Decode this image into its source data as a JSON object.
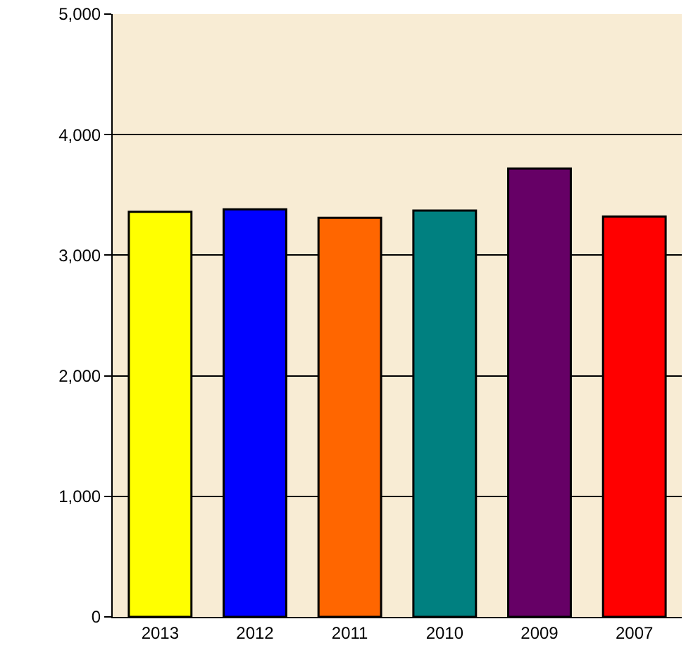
{
  "chart_data": {
    "type": "bar",
    "categories": [
      "2013",
      "2012",
      "2011",
      "2010",
      "2009",
      "2007"
    ],
    "values": [
      3360,
      3380,
      3310,
      3370,
      3720,
      3320
    ],
    "colors": [
      "#ffff00",
      "#0000ff",
      "#ff6600",
      "#008080",
      "#660066",
      "#ff0000"
    ],
    "ylim": [
      0,
      5000
    ],
    "yticks": [
      {
        "value": 0,
        "label": "0"
      },
      {
        "value": 1000,
        "label": "1,000"
      },
      {
        "value": 2000,
        "label": "2,000"
      },
      {
        "value": 3000,
        "label": "3,000"
      },
      {
        "value": 4000,
        "label": "4,000"
      },
      {
        "value": 5000,
        "label": "5,000"
      }
    ],
    "grid": "y",
    "legend": false
  }
}
